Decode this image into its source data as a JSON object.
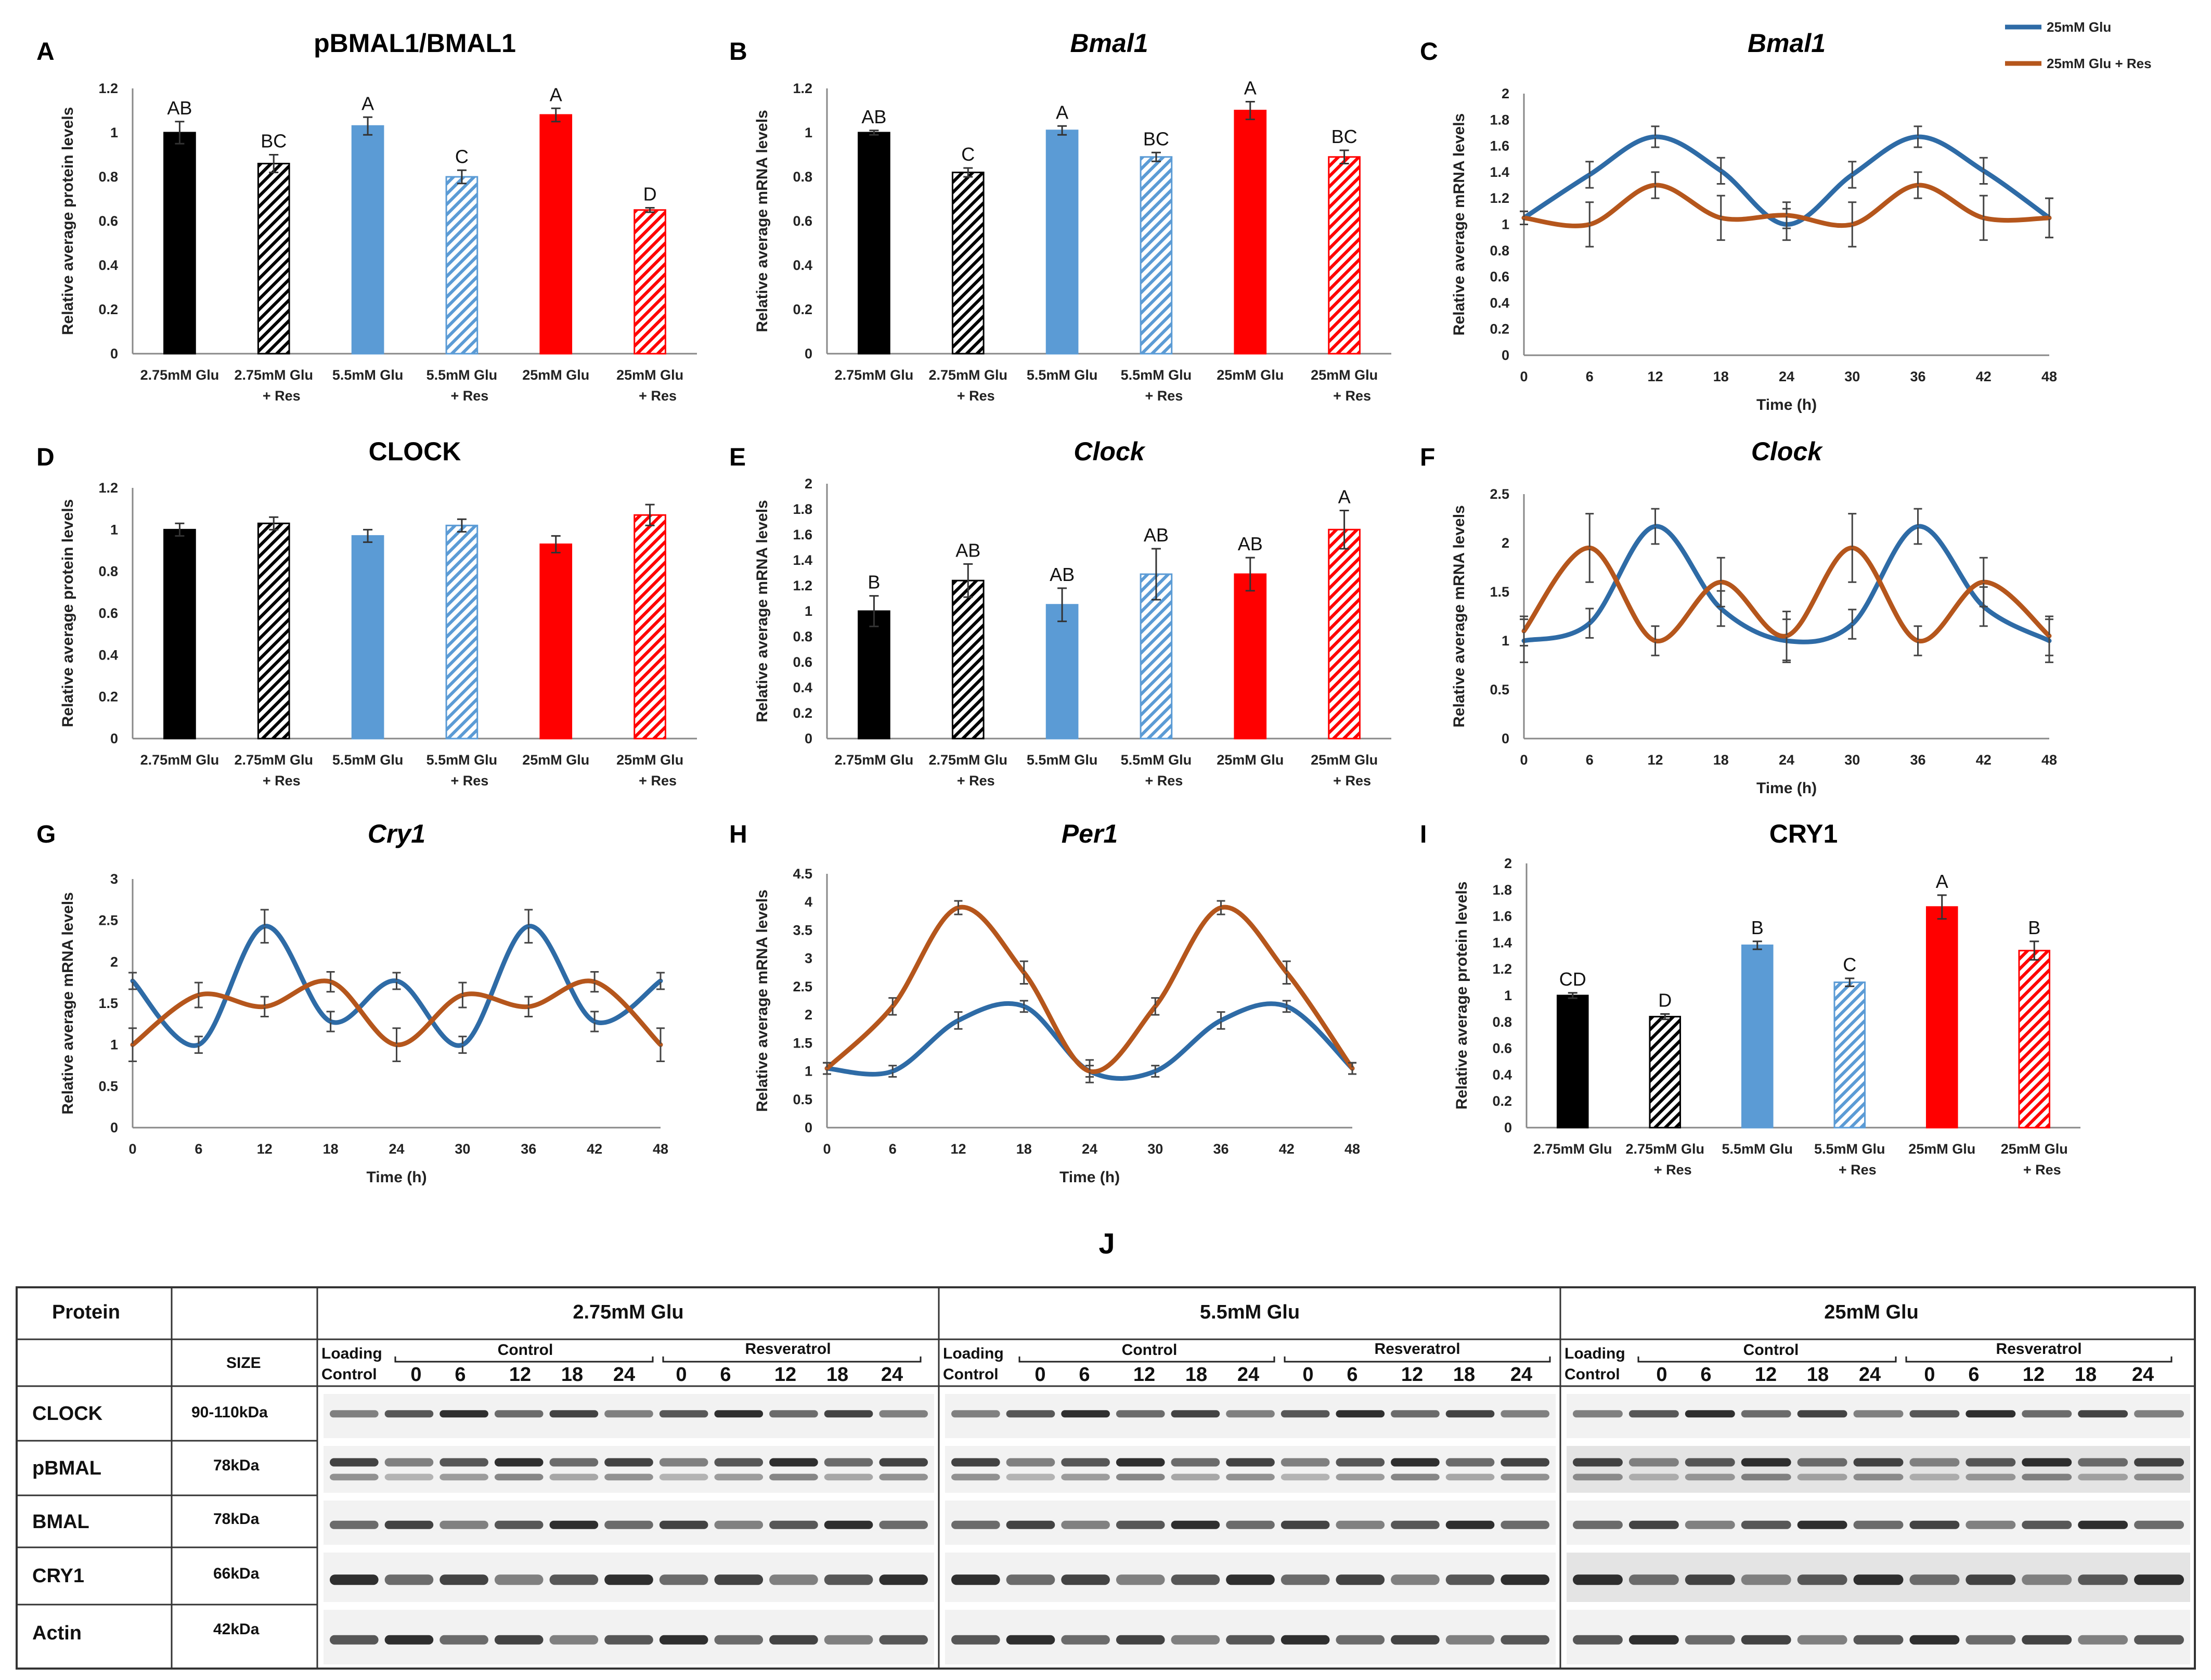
{
  "colors": {
    "black": "#000000",
    "blue": "#5b9bd5",
    "red": "#ff0000",
    "line_blue": "#2e6ba6",
    "line_brown": "#b5561c"
  },
  "legend": {
    "series1": "25mM Glu",
    "series2": "25mM Glu + Res"
  },
  "chart_data": [
    {
      "id": "A",
      "type": "bar",
      "title": "pBMAL1/BMAL1",
      "italic": false,
      "ylabel": "Relative average protein levels",
      "ylim": [
        0,
        1.2
      ],
      "yticks": [
        "0",
        "0.2",
        "0.4",
        "0.6",
        "0.8",
        "1",
        "1.2"
      ],
      "categories": [
        [
          "2.75mM Glu",
          ""
        ],
        [
          "2.75mM Glu",
          "+ Res"
        ],
        [
          "5.5mM Glu",
          ""
        ],
        [
          "5.5mM Glu",
          "+ Res"
        ],
        [
          "25mM Glu",
          ""
        ],
        [
          "25mM Glu",
          "+ Res"
        ]
      ],
      "values": [
        1.0,
        0.86,
        1.03,
        0.8,
        1.08,
        0.65
      ],
      "errors": [
        0.05,
        0.04,
        0.04,
        0.03,
        0.03,
        0.01
      ],
      "labels": [
        "AB",
        "BC",
        "A",
        "C",
        "A",
        "D"
      ]
    },
    {
      "id": "B",
      "type": "bar",
      "title": "Bmal1",
      "italic": true,
      "ylabel": "Relative average mRNA levels",
      "ylim": [
        0,
        1.2
      ],
      "yticks": [
        "0",
        "0.2",
        "0.4",
        "0.6",
        "0.8",
        "1",
        "1.2"
      ],
      "categories": [
        [
          "2.75mM Glu",
          ""
        ],
        [
          "2.75mM Glu",
          "+ Res"
        ],
        [
          "5.5mM Glu",
          ""
        ],
        [
          "5.5mM Glu",
          "+ Res"
        ],
        [
          "25mM Glu",
          ""
        ],
        [
          "25mM Glu",
          "+ Res"
        ]
      ],
      "values": [
        1.0,
        0.82,
        1.01,
        0.89,
        1.1,
        0.89
      ],
      "errors": [
        0.01,
        0.02,
        0.02,
        0.02,
        0.04,
        0.03
      ],
      "labels": [
        "AB",
        "C",
        "A",
        "BC",
        "A",
        "BC"
      ]
    },
    {
      "id": "C",
      "type": "line",
      "title": "Bmal1",
      "italic": true,
      "ylabel": "Relative average mRNA levels",
      "xlabel": "Time (h)",
      "ylim": [
        0,
        2
      ],
      "yticks": [
        "0",
        "0.2",
        "0.4",
        "0.6",
        "0.8",
        "1",
        "1.2",
        "1.4",
        "1.6",
        "1.8",
        "2"
      ],
      "x": [
        0,
        6,
        12,
        18,
        24,
        30,
        36,
        42,
        48
      ],
      "xticks": [
        "0",
        "6",
        "12",
        "18",
        "24",
        "30",
        "36",
        "42",
        "48"
      ],
      "series": [
        {
          "name": "25mM Glu",
          "values": [
            1.05,
            1.38,
            1.67,
            1.41,
            1.0,
            1.38,
            1.67,
            1.41,
            1.05
          ],
          "errors": [
            0.05,
            0.1,
            0.08,
            0.1,
            0.12,
            0.1,
            0.08,
            0.1,
            0.15
          ]
        },
        {
          "name": "25mM Glu + Res",
          "values": [
            1.05,
            1.0,
            1.3,
            1.05,
            1.07,
            1.0,
            1.3,
            1.05,
            1.05
          ],
          "errors": [
            0.05,
            0.17,
            0.1,
            0.17,
            0.1,
            0.17,
            0.1,
            0.17,
            0.15
          ]
        }
      ]
    },
    {
      "id": "D",
      "type": "bar",
      "title": "CLOCK",
      "italic": false,
      "ylabel": "Relative average protein levels",
      "ylim": [
        0,
        1.2
      ],
      "yticks": [
        "0",
        "0.2",
        "0.4",
        "0.6",
        "0.8",
        "1",
        "1.2"
      ],
      "categories": [
        [
          "2.75mM Glu",
          ""
        ],
        [
          "2.75mM Glu",
          "+ Res"
        ],
        [
          "5.5mM Glu",
          ""
        ],
        [
          "5.5mM Glu",
          "+ Res"
        ],
        [
          "25mM Glu",
          ""
        ],
        [
          "25mM Glu",
          "+ Res"
        ]
      ],
      "values": [
        1.0,
        1.03,
        0.97,
        1.02,
        0.93,
        1.07
      ],
      "errors": [
        0.03,
        0.03,
        0.03,
        0.03,
        0.04,
        0.05
      ],
      "labels": [
        "",
        "",
        "",
        "",
        "",
        ""
      ]
    },
    {
      "id": "E",
      "type": "bar",
      "title": "Clock",
      "italic": true,
      "ylabel": "Relative average mRNA levels",
      "ylim": [
        0,
        2
      ],
      "yticks": [
        "0",
        "0.2",
        "0.4",
        "0.6",
        "0.8",
        "1",
        "1.2",
        "1.4",
        "1.6",
        "1.8",
        "2"
      ],
      "categories": [
        [
          "2.75mM Glu",
          ""
        ],
        [
          "2.75mM Glu",
          "+ Res"
        ],
        [
          "5.5mM Glu",
          ""
        ],
        [
          "5.5mM Glu",
          "+ Res"
        ],
        [
          "25mM Glu",
          ""
        ],
        [
          "25mM Glu",
          "+ Res"
        ]
      ],
      "values": [
        1.0,
        1.24,
        1.05,
        1.29,
        1.29,
        1.64
      ],
      "errors": [
        0.12,
        0.13,
        0.13,
        0.2,
        0.13,
        0.15
      ],
      "labels": [
        "B",
        "AB",
        "AB",
        "AB",
        "AB",
        "A"
      ]
    },
    {
      "id": "F",
      "type": "line",
      "title": "Clock",
      "italic": true,
      "ylabel": "Relative average mRNA levels",
      "xlabel": "Time (h)",
      "ylim": [
        0,
        2.5
      ],
      "yticks": [
        "0",
        "0.5",
        "1",
        "1.5",
        "2",
        "2.5"
      ],
      "x": [
        0,
        6,
        12,
        18,
        24,
        30,
        36,
        42,
        48
      ],
      "xticks": [
        "0",
        "6",
        "12",
        "18",
        "24",
        "30",
        "36",
        "42",
        "48"
      ],
      "series": [
        {
          "name": "25mM Glu",
          "values": [
            1.0,
            1.18,
            2.17,
            1.33,
            1.0,
            1.17,
            2.17,
            1.35,
            1.0
          ],
          "errors": [
            0.22,
            0.15,
            0.18,
            0.18,
            0.22,
            0.15,
            0.18,
            0.2,
            0.22
          ]
        },
        {
          "name": "25mM Glu + Res",
          "values": [
            1.1,
            1.95,
            1.0,
            1.6,
            1.05,
            1.95,
            1.0,
            1.6,
            1.05
          ],
          "errors": [
            0.15,
            0.35,
            0.15,
            0.25,
            0.25,
            0.35,
            0.15,
            0.25,
            0.2
          ]
        }
      ]
    },
    {
      "id": "G",
      "type": "line",
      "title": "Cry1",
      "italic": true,
      "ylabel": "Relative average mRNA levels",
      "xlabel": "Time (h)",
      "ylim": [
        0,
        3
      ],
      "yticks": [
        "0",
        "0.5",
        "1",
        "1.5",
        "2",
        "2.5",
        "3"
      ],
      "x": [
        0,
        6,
        12,
        18,
        24,
        30,
        36,
        42,
        48
      ],
      "xticks": [
        "0",
        "6",
        "12",
        "18",
        "24",
        "30",
        "36",
        "42",
        "48"
      ],
      "series": [
        {
          "name": "25mM Glu",
          "values": [
            1.77,
            1.0,
            2.43,
            1.28,
            1.77,
            1.0,
            2.43,
            1.28,
            1.77
          ],
          "errors": [
            0.1,
            0.1,
            0.2,
            0.12,
            0.1,
            0.1,
            0.2,
            0.12,
            0.1
          ]
        },
        {
          "name": "25mM Glu + Res",
          "values": [
            1.0,
            1.6,
            1.46,
            1.76,
            1.0,
            1.6,
            1.46,
            1.76,
            1.0
          ],
          "errors": [
            0.2,
            0.15,
            0.12,
            0.12,
            0.2,
            0.15,
            0.12,
            0.12,
            0.2
          ]
        }
      ]
    },
    {
      "id": "H",
      "type": "line",
      "title": "Per1",
      "italic": true,
      "ylabel": "Relative average mRNA levels",
      "xlabel": "Time (h)",
      "ylim": [
        0,
        4.5
      ],
      "yticks": [
        "0",
        "0.5",
        "1",
        "1.5",
        "2",
        "2.5",
        "3",
        "3.5",
        "4",
        "4.5"
      ],
      "x": [
        0,
        6,
        12,
        18,
        24,
        30,
        36,
        42,
        48
      ],
      "xticks": [
        "0",
        "6",
        "12",
        "18",
        "24",
        "30",
        "36",
        "42",
        "48"
      ],
      "series": [
        {
          "name": "25mM Glu",
          "values": [
            1.05,
            1.0,
            1.9,
            2.15,
            1.0,
            1.0,
            1.9,
            2.15,
            1.05
          ],
          "errors": [
            0.1,
            0.1,
            0.15,
            0.1,
            0.1,
            0.1,
            0.15,
            0.1,
            0.1
          ]
        },
        {
          "name": "25mM Glu + Res",
          "values": [
            1.05,
            2.15,
            3.9,
            2.75,
            1.0,
            2.15,
            3.9,
            2.75,
            1.05
          ],
          "errors": [
            0.1,
            0.15,
            0.12,
            0.2,
            0.2,
            0.15,
            0.12,
            0.2,
            0.1
          ]
        }
      ]
    },
    {
      "id": "I",
      "type": "bar",
      "title": "CRY1",
      "italic": false,
      "ylabel": "Relative average protein levels",
      "ylim": [
        0,
        2
      ],
      "yticks": [
        "0",
        "0.2",
        "0.4",
        "0.6",
        "0.8",
        "1",
        "1.2",
        "1.4",
        "1.6",
        "1.8",
        "2"
      ],
      "categories": [
        [
          "2.75mM Glu",
          ""
        ],
        [
          "2.75mM Glu",
          "+ Res"
        ],
        [
          "5.5mM Glu",
          ""
        ],
        [
          "5.5mM Glu",
          "+ Res"
        ],
        [
          "25mM Glu",
          ""
        ],
        [
          "25mM Glu",
          "+ Res"
        ]
      ],
      "values": [
        1.0,
        0.84,
        1.38,
        1.1,
        1.67,
        1.34
      ],
      "errors": [
        0.02,
        0.02,
        0.03,
        0.03,
        0.09,
        0.07
      ],
      "labels": [
        "CD",
        "D",
        "B",
        "C",
        "A",
        "B"
      ]
    }
  ],
  "blot": {
    "panel_label": "J",
    "header_protein": "Protein",
    "header_size": "SIZE",
    "groups": [
      {
        "title": "2.75mM Glu",
        "loading": [
          "Loading",
          "Control"
        ],
        "control": "Control",
        "resveratrol": "Resveratrol",
        "times": [
          "0",
          "6",
          "12",
          "18",
          "24"
        ]
      },
      {
        "title": "5.5mM Glu",
        "loading": [
          "Loading",
          "Control"
        ],
        "control": "Control",
        "resveratrol": "Resveratrol",
        "times": [
          "0",
          "6",
          "12",
          "18",
          "24"
        ]
      },
      {
        "title": "25mM Glu",
        "loading": [
          "Loading",
          "Control"
        ],
        "control": "Control",
        "resveratrol": "Resveratrol",
        "times": [
          "0",
          "6",
          "12",
          "18",
          "24"
        ]
      }
    ],
    "rows": [
      {
        "protein": "CLOCK",
        "size": "90-110kDa"
      },
      {
        "protein": "pBMAL",
        "size": "78kDa"
      },
      {
        "protein": "BMAL",
        "size": "78kDa"
      },
      {
        "protein": "CRY1",
        "size": "66kDa"
      },
      {
        "protein": "Actin",
        "size": "42kDa"
      }
    ]
  }
}
